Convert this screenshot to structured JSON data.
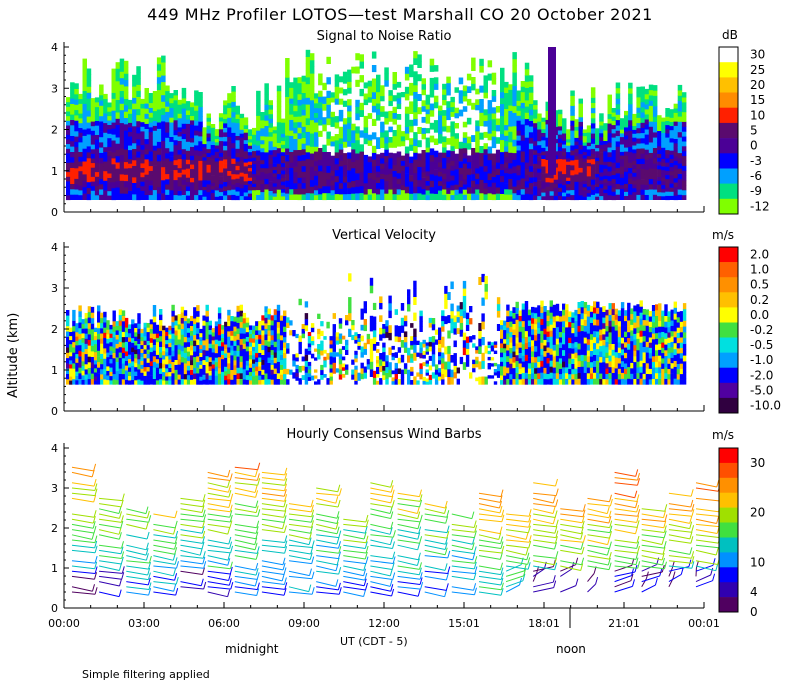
{
  "header": {
    "title": "449 MHz Profiler LOTOS—test Marshall CO 20 October 2021",
    "footer_note": "Simple filtering applied",
    "y_axis_label": "Altitude (km)",
    "x_axis_label": "UT  (CDT - 5)",
    "midnight_label": "midnight",
    "noon_label": "noon"
  },
  "chart_data": [
    {
      "type": "heatmap",
      "title": "Signal to Noise Ratio",
      "ylabel": "Altitude (km)",
      "xlabel": "UT  (CDT - 5)",
      "x_ticks": [
        "00:00",
        "03:00",
        "06:00",
        "09:00",
        "12:00",
        "15:01",
        "18:01",
        "21:01",
        "00:01"
      ],
      "ylim": [
        0,
        4
      ],
      "y_ticks": [
        "0",
        "1",
        "2",
        "3",
        "4"
      ],
      "colorbar": {
        "unit": "dB",
        "labels": [
          "30",
          "25",
          "20",
          "15",
          "10",
          "5",
          "0",
          "-3",
          "-6",
          "-9",
          "-12"
        ],
        "colors": [
          "#ffffff",
          "#ffff00",
          "#ffc000",
          "#ff8c00",
          "#ff2000",
          "#5a0a6e",
          "#4b0096",
          "#0000ff",
          "#00a0ff",
          "#00e080",
          "#80ff00"
        ]
      },
      "description_values": {
        "strongest_layer_km": [
          0.7,
          1.3
        ],
        "max_snr_db": 10,
        "min_snr_db": -12
      }
    },
    {
      "type": "heatmap",
      "title": "Vertical Velocity",
      "ylabel": "Altitude (km)",
      "ylim": [
        0,
        4
      ],
      "y_ticks": [
        "0",
        "1",
        "2",
        "3",
        "4"
      ],
      "colorbar": {
        "unit": "m/s",
        "labels": [
          "2.0",
          "1.0",
          "0.5",
          "0.2",
          "0.0",
          "-0.2",
          "-0.5",
          "-1.0",
          "-2.0",
          "-5.0",
          "-10.0"
        ],
        "colors": [
          "#ff0000",
          "#ff6000",
          "#ff9000",
          "#ffc000",
          "#ffff00",
          "#40e040",
          "#00e0e0",
          "#00a0ff",
          "#0000ff",
          "#5000a0",
          "#300040"
        ]
      }
    },
    {
      "type": "scatter",
      "title": "Hourly Consensus Wind Barbs",
      "ylabel": "Altitude (km)",
      "ylim": [
        0,
        4
      ],
      "y_ticks": [
        "0",
        "1",
        "2",
        "3",
        "4"
      ],
      "colorbar": {
        "unit": "m/s",
        "labels": [
          "30",
          "20",
          "10",
          "4",
          "0"
        ],
        "label_values": [
          30,
          20,
          10,
          4,
          0
        ],
        "colors": [
          "#ff0000",
          "#ff5000",
          "#ff9000",
          "#ffc000",
          "#a0e000",
          "#40e040",
          "#00c0c0",
          "#0090ff",
          "#0000ff",
          "#3000b0",
          "#500060"
        ]
      }
    }
  ]
}
